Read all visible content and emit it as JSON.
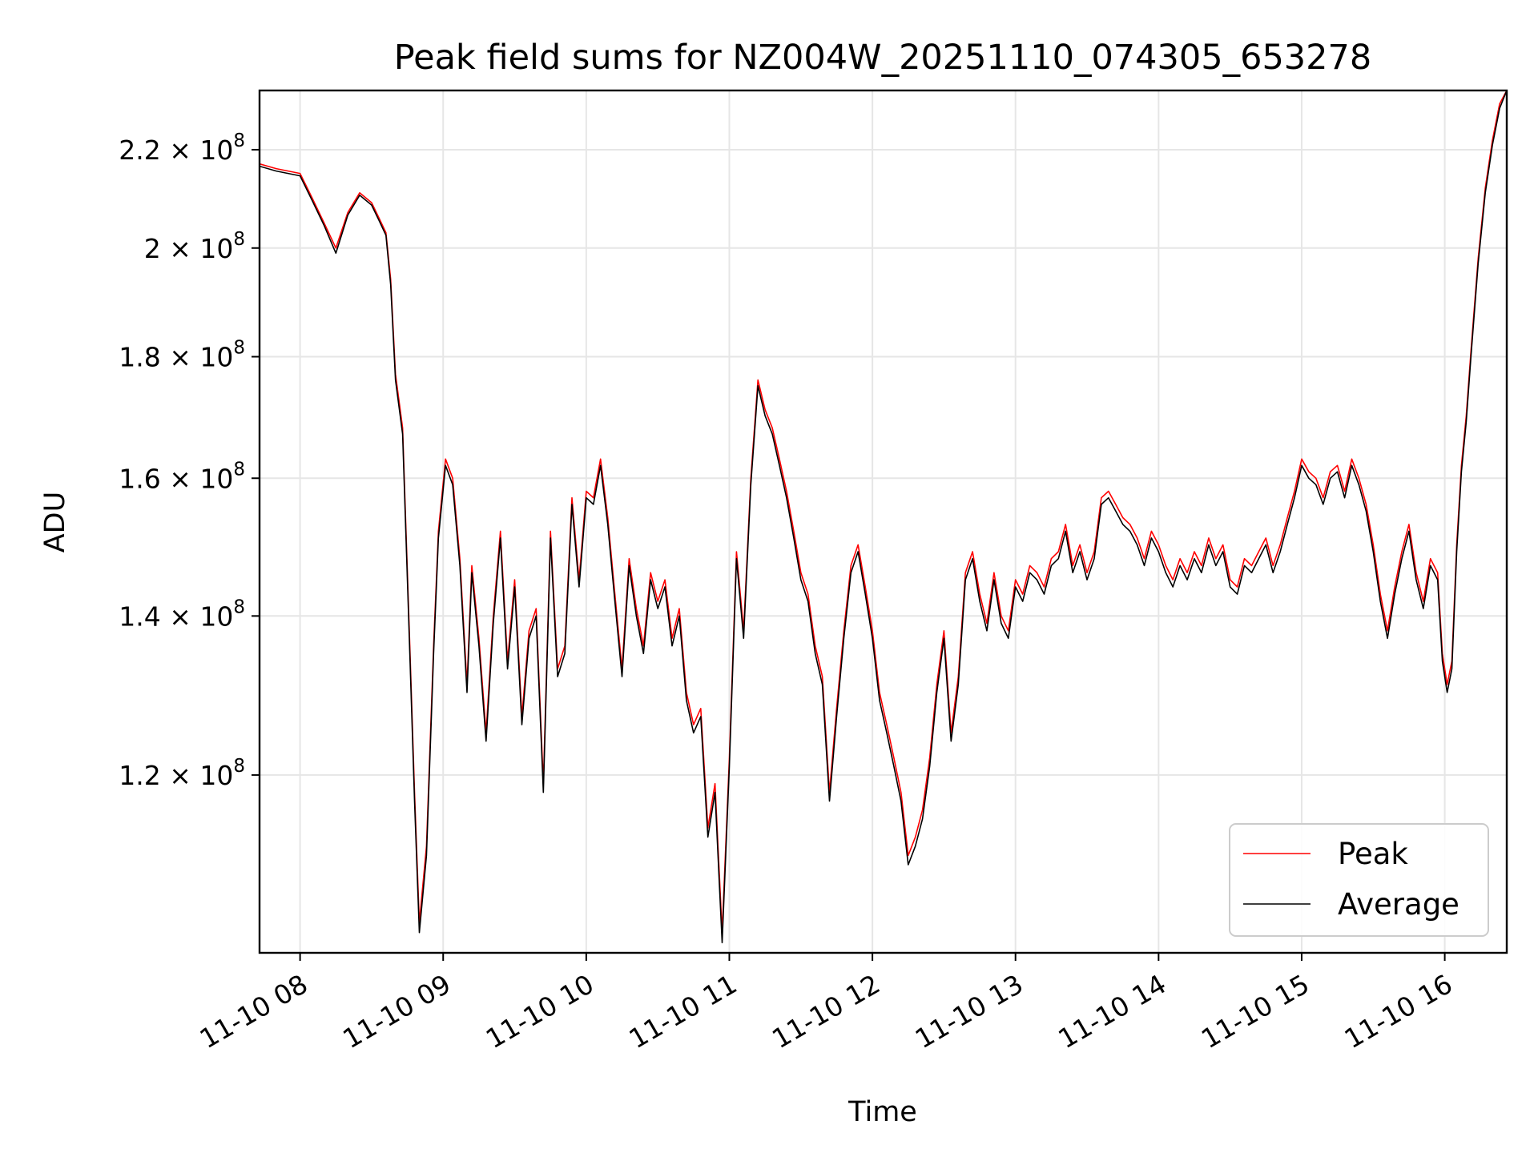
{
  "chart_data": {
    "type": "line",
    "title": "Peak field sums for NZ004W_20251110_074305_653278",
    "xlabel": "Time",
    "ylabel": "ADU",
    "y_scale": "log",
    "ylim": [
      101000000,
      233000000
    ],
    "xlim": [
      "2025-11-10 07:43",
      "2025-11-10 16:26"
    ],
    "grid": true,
    "legend_position": "lower right",
    "x_ticks": [
      {
        "t": "2025-11-10 08:00",
        "label": "11-10 08"
      },
      {
        "t": "2025-11-10 09:00",
        "label": "11-10 09"
      },
      {
        "t": "2025-11-10 10:00",
        "label": "11-10 10"
      },
      {
        "t": "2025-11-10 11:00",
        "label": "11-10 11"
      },
      {
        "t": "2025-11-10 12:00",
        "label": "11-10 12"
      },
      {
        "t": "2025-11-10 13:00",
        "label": "11-10 13"
      },
      {
        "t": "2025-11-10 14:00",
        "label": "11-10 14"
      },
      {
        "t": "2025-11-10 15:00",
        "label": "11-10 15"
      },
      {
        "t": "2025-11-10 16:00",
        "label": "11-10 16"
      }
    ],
    "y_ticks": [
      {
        "value": 120000000,
        "mantissa": "1.2",
        "exponent": "8"
      },
      {
        "value": 140000000,
        "mantissa": "1.4",
        "exponent": "8"
      },
      {
        "value": 160000000,
        "mantissa": "1.6",
        "exponent": "8"
      },
      {
        "value": 180000000,
        "mantissa": "1.8",
        "exponent": "8"
      },
      {
        "value": 200000000,
        "mantissa": "2",
        "exponent": "8"
      },
      {
        "value": 220000000,
        "mantissa": "2.2",
        "exponent": "8"
      }
    ],
    "series": [
      {
        "name": "Peak",
        "color": "#ff0000",
        "x": [
          "2025-11-10 07:43",
          "2025-11-10 07:50",
          "2025-11-10 08:00",
          "2025-11-10 08:05",
          "2025-11-10 08:10",
          "2025-11-10 08:15",
          "2025-11-10 08:20",
          "2025-11-10 08:25",
          "2025-11-10 08:30",
          "2025-11-10 08:33",
          "2025-11-10 08:36",
          "2025-11-10 08:38",
          "2025-11-10 08:40",
          "2025-11-10 08:43",
          "2025-11-10 08:46",
          "2025-11-10 08:48",
          "2025-11-10 08:50",
          "2025-11-10 08:53",
          "2025-11-10 08:56",
          "2025-11-10 08:58",
          "2025-11-10 09:01",
          "2025-11-10 09:04",
          "2025-11-10 09:07",
          "2025-11-10 09:10",
          "2025-11-10 09:12",
          "2025-11-10 09:15",
          "2025-11-10 09:18",
          "2025-11-10 09:21",
          "2025-11-10 09:24",
          "2025-11-10 09:27",
          "2025-11-10 09:30",
          "2025-11-10 09:33",
          "2025-11-10 09:36",
          "2025-11-10 09:39",
          "2025-11-10 09:42",
          "2025-11-10 09:45",
          "2025-11-10 09:48",
          "2025-11-10 09:51",
          "2025-11-10 09:54",
          "2025-11-10 09:57",
          "2025-11-10 10:00",
          "2025-11-10 10:03",
          "2025-11-10 10:06",
          "2025-11-10 10:09",
          "2025-11-10 10:12",
          "2025-11-10 10:15",
          "2025-11-10 10:18",
          "2025-11-10 10:21",
          "2025-11-10 10:24",
          "2025-11-10 10:27",
          "2025-11-10 10:30",
          "2025-11-10 10:33",
          "2025-11-10 10:36",
          "2025-11-10 10:39",
          "2025-11-10 10:42",
          "2025-11-10 10:45",
          "2025-11-10 10:48",
          "2025-11-10 10:51",
          "2025-11-10 10:54",
          "2025-11-10 10:57",
          "2025-11-10 11:00",
          "2025-11-10 11:03",
          "2025-11-10 11:06",
          "2025-11-10 11:09",
          "2025-11-10 11:12",
          "2025-11-10 11:15",
          "2025-11-10 11:18",
          "2025-11-10 11:21",
          "2025-11-10 11:24",
          "2025-11-10 11:27",
          "2025-11-10 11:30",
          "2025-11-10 11:33",
          "2025-11-10 11:36",
          "2025-11-10 11:39",
          "2025-11-10 11:42",
          "2025-11-10 11:45",
          "2025-11-10 11:48",
          "2025-11-10 11:51",
          "2025-11-10 11:54",
          "2025-11-10 11:57",
          "2025-11-10 12:00",
          "2025-11-10 12:03",
          "2025-11-10 12:06",
          "2025-11-10 12:09",
          "2025-11-10 12:12",
          "2025-11-10 12:15",
          "2025-11-10 12:18",
          "2025-11-10 12:21",
          "2025-11-10 12:24",
          "2025-11-10 12:27",
          "2025-11-10 12:30",
          "2025-11-10 12:33",
          "2025-11-10 12:36",
          "2025-11-10 12:39",
          "2025-11-10 12:42",
          "2025-11-10 12:45",
          "2025-11-10 12:48",
          "2025-11-10 12:51",
          "2025-11-10 12:54",
          "2025-11-10 12:57",
          "2025-11-10 13:00",
          "2025-11-10 13:03",
          "2025-11-10 13:06",
          "2025-11-10 13:09",
          "2025-11-10 13:12",
          "2025-11-10 13:15",
          "2025-11-10 13:18",
          "2025-11-10 13:21",
          "2025-11-10 13:24",
          "2025-11-10 13:27",
          "2025-11-10 13:30",
          "2025-11-10 13:33",
          "2025-11-10 13:36",
          "2025-11-10 13:39",
          "2025-11-10 13:42",
          "2025-11-10 13:45",
          "2025-11-10 13:48",
          "2025-11-10 13:51",
          "2025-11-10 13:54",
          "2025-11-10 13:57",
          "2025-11-10 14:00",
          "2025-11-10 14:03",
          "2025-11-10 14:06",
          "2025-11-10 14:09",
          "2025-11-10 14:12",
          "2025-11-10 14:15",
          "2025-11-10 14:18",
          "2025-11-10 14:21",
          "2025-11-10 14:24",
          "2025-11-10 14:27",
          "2025-11-10 14:30",
          "2025-11-10 14:33",
          "2025-11-10 14:36",
          "2025-11-10 14:39",
          "2025-11-10 14:42",
          "2025-11-10 14:45",
          "2025-11-10 14:48",
          "2025-11-10 14:51",
          "2025-11-10 14:54",
          "2025-11-10 14:57",
          "2025-11-10 15:00",
          "2025-11-10 15:03",
          "2025-11-10 15:06",
          "2025-11-10 15:09",
          "2025-11-10 15:12",
          "2025-11-10 15:15",
          "2025-11-10 15:18",
          "2025-11-10 15:21",
          "2025-11-10 15:24",
          "2025-11-10 15:27",
          "2025-11-10 15:30",
          "2025-11-10 15:33",
          "2025-11-10 15:36",
          "2025-11-10 15:39",
          "2025-11-10 15:42",
          "2025-11-10 15:45",
          "2025-11-10 15:48",
          "2025-11-10 15:51",
          "2025-11-10 15:54",
          "2025-11-10 15:57",
          "2025-11-10 15:59",
          "2025-11-10 16:01",
          "2025-11-10 16:03",
          "2025-11-10 16:05",
          "2025-11-10 16:07",
          "2025-11-10 16:09",
          "2025-11-10 16:11",
          "2025-11-10 16:14",
          "2025-11-10 16:17",
          "2025-11-10 16:20",
          "2025-11-10 16:23",
          "2025-11-10 16:26"
        ],
        "y": [
          217000000,
          216000000,
          215000000,
          210000000,
          205000000,
          200000000,
          207000000,
          211000000,
          209000000,
          206000000,
          203000000,
          194000000,
          177000000,
          168000000,
          136000000,
          118000000,
          104000000,
          112000000,
          136000000,
          152000000,
          163000000,
          160000000,
          148000000,
          131000000,
          147000000,
          137000000,
          125000000,
          140000000,
          152000000,
          134000000,
          145000000,
          127000000,
          138000000,
          141000000,
          119000000,
          152000000,
          133000000,
          136000000,
          157000000,
          145000000,
          158000000,
          157000000,
          163000000,
          154000000,
          143000000,
          133000000,
          148000000,
          141000000,
          136000000,
          146000000,
          142000000,
          145000000,
          137000000,
          141000000,
          130000000,
          126000000,
          128000000,
          114000000,
          119000000,
          103000000,
          122000000,
          149000000,
          138000000,
          160000000,
          176000000,
          171000000,
          168000000,
          163000000,
          158000000,
          152000000,
          146000000,
          143000000,
          136000000,
          132000000,
          118000000,
          128000000,
          138000000,
          147000000,
          150000000,
          144000000,
          138000000,
          130000000,
          126000000,
          122000000,
          118000000,
          111000000,
          113000000,
          116000000,
          122000000,
          131000000,
          138000000,
          125000000,
          132000000,
          146000000,
          149000000,
          143000000,
          139000000,
          146000000,
          140000000,
          138000000,
          145000000,
          143000000,
          147000000,
          146000000,
          144000000,
          148000000,
          149000000,
          153000000,
          147000000,
          150000000,
          146000000,
          149000000,
          157000000,
          158000000,
          156000000,
          154000000,
          153000000,
          151000000,
          148000000,
          152000000,
          150000000,
          147000000,
          145000000,
          148000000,
          146000000,
          149000000,
          147000000,
          151000000,
          148000000,
          150000000,
          145000000,
          144000000,
          148000000,
          147000000,
          149000000,
          151000000,
          147000000,
          150000000,
          154000000,
          158000000,
          163000000,
          161000000,
          160000000,
          157000000,
          161000000,
          162000000,
          158000000,
          163000000,
          160000000,
          156000000,
          150000000,
          143000000,
          138000000,
          144000000,
          149000000,
          153000000,
          146000000,
          142000000,
          148000000,
          146000000,
          135000000,
          131000000,
          134000000,
          150000000,
          162000000,
          170000000,
          181000000,
          198000000,
          212000000,
          222000000,
          230000000,
          233000000
        ]
      },
      {
        "name": "Average",
        "color": "#000000",
        "x": [
          "2025-11-10 07:43",
          "2025-11-10 07:50",
          "2025-11-10 08:00",
          "2025-11-10 08:05",
          "2025-11-10 08:10",
          "2025-11-10 08:15",
          "2025-11-10 08:20",
          "2025-11-10 08:25",
          "2025-11-10 08:30",
          "2025-11-10 08:33",
          "2025-11-10 08:36",
          "2025-11-10 08:38",
          "2025-11-10 08:40",
          "2025-11-10 08:43",
          "2025-11-10 08:46",
          "2025-11-10 08:48",
          "2025-11-10 08:50",
          "2025-11-10 08:53",
          "2025-11-10 08:56",
          "2025-11-10 08:58",
          "2025-11-10 09:01",
          "2025-11-10 09:04",
          "2025-11-10 09:07",
          "2025-11-10 09:10",
          "2025-11-10 09:12",
          "2025-11-10 09:15",
          "2025-11-10 09:18",
          "2025-11-10 09:21",
          "2025-11-10 09:24",
          "2025-11-10 09:27",
          "2025-11-10 09:30",
          "2025-11-10 09:33",
          "2025-11-10 09:36",
          "2025-11-10 09:39",
          "2025-11-10 09:42",
          "2025-11-10 09:45",
          "2025-11-10 09:48",
          "2025-11-10 09:51",
          "2025-11-10 09:54",
          "2025-11-10 09:57",
          "2025-11-10 10:00",
          "2025-11-10 10:03",
          "2025-11-10 10:06",
          "2025-11-10 10:09",
          "2025-11-10 10:12",
          "2025-11-10 10:15",
          "2025-11-10 10:18",
          "2025-11-10 10:21",
          "2025-11-10 10:24",
          "2025-11-10 10:27",
          "2025-11-10 10:30",
          "2025-11-10 10:33",
          "2025-11-10 10:36",
          "2025-11-10 10:39",
          "2025-11-10 10:42",
          "2025-11-10 10:45",
          "2025-11-10 10:48",
          "2025-11-10 10:51",
          "2025-11-10 10:54",
          "2025-11-10 10:57",
          "2025-11-10 11:00",
          "2025-11-10 11:03",
          "2025-11-10 11:06",
          "2025-11-10 11:09",
          "2025-11-10 11:12",
          "2025-11-10 11:15",
          "2025-11-10 11:18",
          "2025-11-10 11:21",
          "2025-11-10 11:24",
          "2025-11-10 11:27",
          "2025-11-10 11:30",
          "2025-11-10 11:33",
          "2025-11-10 11:36",
          "2025-11-10 11:39",
          "2025-11-10 11:42",
          "2025-11-10 11:45",
          "2025-11-10 11:48",
          "2025-11-10 11:51",
          "2025-11-10 11:54",
          "2025-11-10 11:57",
          "2025-11-10 12:00",
          "2025-11-10 12:03",
          "2025-11-10 12:06",
          "2025-11-10 12:09",
          "2025-11-10 12:12",
          "2025-11-10 12:15",
          "2025-11-10 12:18",
          "2025-11-10 12:21",
          "2025-11-10 12:24",
          "2025-11-10 12:27",
          "2025-11-10 12:30",
          "2025-11-10 12:33",
          "2025-11-10 12:36",
          "2025-11-10 12:39",
          "2025-11-10 12:42",
          "2025-11-10 12:45",
          "2025-11-10 12:48",
          "2025-11-10 12:51",
          "2025-11-10 12:54",
          "2025-11-10 12:57",
          "2025-11-10 13:00",
          "2025-11-10 13:03",
          "2025-11-10 13:06",
          "2025-11-10 13:09",
          "2025-11-10 13:12",
          "2025-11-10 13:15",
          "2025-11-10 13:18",
          "2025-11-10 13:21",
          "2025-11-10 13:24",
          "2025-11-10 13:27",
          "2025-11-10 13:30",
          "2025-11-10 13:33",
          "2025-11-10 13:36",
          "2025-11-10 13:39",
          "2025-11-10 13:42",
          "2025-11-10 13:45",
          "2025-11-10 13:48",
          "2025-11-10 13:51",
          "2025-11-10 13:54",
          "2025-11-10 13:57",
          "2025-11-10 14:00",
          "2025-11-10 14:03",
          "2025-11-10 14:06",
          "2025-11-10 14:09",
          "2025-11-10 14:12",
          "2025-11-10 14:15",
          "2025-11-10 14:18",
          "2025-11-10 14:21",
          "2025-11-10 14:24",
          "2025-11-10 14:27",
          "2025-11-10 14:30",
          "2025-11-10 14:33",
          "2025-11-10 14:36",
          "2025-11-10 14:39",
          "2025-11-10 14:42",
          "2025-11-10 14:45",
          "2025-11-10 14:48",
          "2025-11-10 14:51",
          "2025-11-10 14:54",
          "2025-11-10 14:57",
          "2025-11-10 15:00",
          "2025-11-10 15:03",
          "2025-11-10 15:06",
          "2025-11-10 15:09",
          "2025-11-10 15:12",
          "2025-11-10 15:15",
          "2025-11-10 15:18",
          "2025-11-10 15:21",
          "2025-11-10 15:24",
          "2025-11-10 15:27",
          "2025-11-10 15:30",
          "2025-11-10 15:33",
          "2025-11-10 15:36",
          "2025-11-10 15:39",
          "2025-11-10 15:42",
          "2025-11-10 15:45",
          "2025-11-10 15:48",
          "2025-11-10 15:51",
          "2025-11-10 15:54",
          "2025-11-10 15:57",
          "2025-11-10 15:59",
          "2025-11-10 16:01",
          "2025-11-10 16:03",
          "2025-11-10 16:05",
          "2025-11-10 16:07",
          "2025-11-10 16:09",
          "2025-11-10 16:11",
          "2025-11-10 16:14",
          "2025-11-10 16:17",
          "2025-11-10 16:20",
          "2025-11-10 16:23",
          "2025-11-10 16:26"
        ],
        "y": [
          216500000,
          215500000,
          214500000,
          209500000,
          204500000,
          199000000,
          206500000,
          210500000,
          208500000,
          205500000,
          202500000,
          193000000,
          176000000,
          167000000,
          135000000,
          117000000,
          103000000,
          111000000,
          135000000,
          151000000,
          162000000,
          159000000,
          147000000,
          130000000,
          146000000,
          136000000,
          124000000,
          139000000,
          151000000,
          133000000,
          144000000,
          126000000,
          137000000,
          140000000,
          118000000,
          151000000,
          132000000,
          135000000,
          156000000,
          144000000,
          157000000,
          156000000,
          162000000,
          153000000,
          142000000,
          132000000,
          147000000,
          140000000,
          135000000,
          145000000,
          141000000,
          144000000,
          136000000,
          140000000,
          129000000,
          125000000,
          127000000,
          113000000,
          118000000,
          102000000,
          121000000,
          148000000,
          137000000,
          159000000,
          175000000,
          170000000,
          167000000,
          162000000,
          157000000,
          151000000,
          145000000,
          142000000,
          135000000,
          131000000,
          117000000,
          127000000,
          137000000,
          146000000,
          149000000,
          143000000,
          137000000,
          129000000,
          125000000,
          121000000,
          117000000,
          110000000,
          112000000,
          115000000,
          121000000,
          130000000,
          137000000,
          124000000,
          131000000,
          145000000,
          148000000,
          142000000,
          138000000,
          145000000,
          139000000,
          137000000,
          144000000,
          142000000,
          146000000,
          145000000,
          143000000,
          147000000,
          148000000,
          152000000,
          146000000,
          149000000,
          145000000,
          148000000,
          156000000,
          157000000,
          155000000,
          153000000,
          152000000,
          150000000,
          147000000,
          151000000,
          149000000,
          146000000,
          144000000,
          147000000,
          145000000,
          148000000,
          146000000,
          150000000,
          147000000,
          149000000,
          144000000,
          143000000,
          147000000,
          146000000,
          148000000,
          150000000,
          146000000,
          149000000,
          153000000,
          157000000,
          162000000,
          160000000,
          159000000,
          156000000,
          160000000,
          161000000,
          157000000,
          162000000,
          159000000,
          155000000,
          149000000,
          142000000,
          137000000,
          143000000,
          148000000,
          152000000,
          145000000,
          141000000,
          147000000,
          145000000,
          134000000,
          130000000,
          133000000,
          149000000,
          161000000,
          169000000,
          180000000,
          197000000,
          211000000,
          221000000,
          229000000,
          233000000
        ]
      }
    ]
  }
}
